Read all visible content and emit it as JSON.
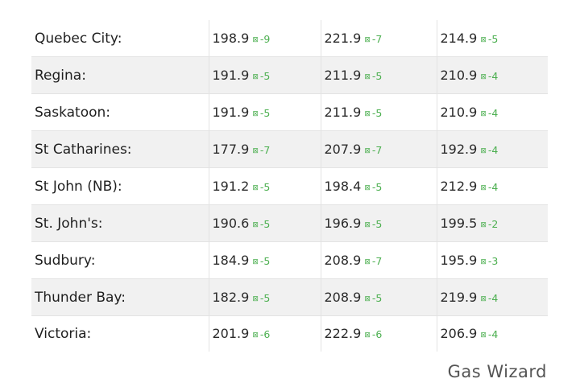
{
  "arrow_glyph": "⊠",
  "rows": [
    {
      "city": "Quebec City:",
      "cols": [
        {
          "price": "198.9",
          "change": "-9"
        },
        {
          "price": "221.9",
          "change": "-7"
        },
        {
          "price": "214.9",
          "change": "-5"
        }
      ]
    },
    {
      "city": "Regina:",
      "cols": [
        {
          "price": "191.9",
          "change": "-5"
        },
        {
          "price": "211.9",
          "change": "-5"
        },
        {
          "price": "210.9",
          "change": "-4"
        }
      ]
    },
    {
      "city": "Saskatoon:",
      "cols": [
        {
          "price": "191.9",
          "change": "-5"
        },
        {
          "price": "211.9",
          "change": "-5"
        },
        {
          "price": "210.9",
          "change": "-4"
        }
      ]
    },
    {
      "city": "St Catharines:",
      "cols": [
        {
          "price": "177.9",
          "change": "-7"
        },
        {
          "price": "207.9",
          "change": "-7"
        },
        {
          "price": "192.9",
          "change": "-4"
        }
      ]
    },
    {
      "city": "St John (NB):",
      "cols": [
        {
          "price": "191.2",
          "change": "-5"
        },
        {
          "price": "198.4",
          "change": "-5"
        },
        {
          "price": "212.9",
          "change": "-4"
        }
      ]
    },
    {
      "city": "St. John's:",
      "cols": [
        {
          "price": "190.6",
          "change": "-5"
        },
        {
          "price": "196.9",
          "change": "-5"
        },
        {
          "price": "199.5",
          "change": "-2"
        }
      ]
    },
    {
      "city": "Sudbury:",
      "cols": [
        {
          "price": "184.9",
          "change": "-5"
        },
        {
          "price": "208.9",
          "change": "-7"
        },
        {
          "price": "195.9",
          "change": "-3"
        }
      ]
    },
    {
      "city": "Thunder Bay:",
      "cols": [
        {
          "price": "182.9",
          "change": "-5"
        },
        {
          "price": "208.9",
          "change": "-5"
        },
        {
          "price": "219.9",
          "change": "-4"
        }
      ]
    },
    {
      "city": "Victoria:",
      "cols": [
        {
          "price": "201.9",
          "change": "-6"
        },
        {
          "price": "222.9",
          "change": "-6"
        },
        {
          "price": "206.9",
          "change": "-4"
        }
      ]
    }
  ],
  "brand": "Gas Wizard",
  "colors": {
    "change_green": "#4caf50",
    "stripe": "#f1f1f1",
    "brand_gray": "#555555"
  }
}
